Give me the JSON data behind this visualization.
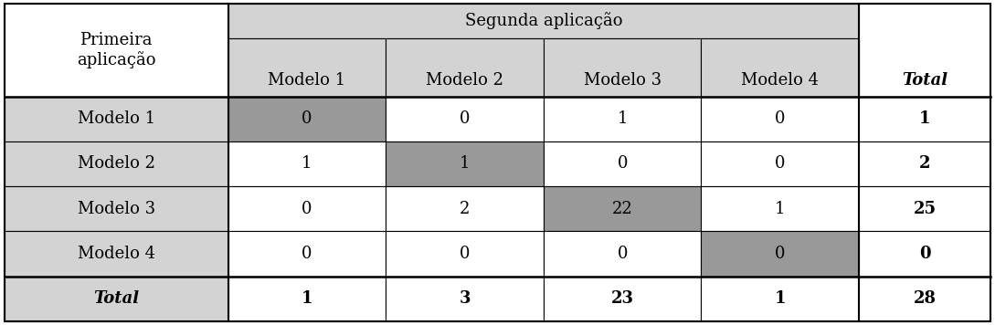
{
  "segunda_aplicacao_label": "Segunda aplicação",
  "col_headers": [
    "Modelo 1",
    "Modelo 2",
    "Modelo 3",
    "Modelo 4",
    "Total"
  ],
  "row_header_label": "Primeira\naplicação",
  "row_labels": [
    "Modelo 1",
    "Modelo 2",
    "Modelo 3",
    "Modelo 4"
  ],
  "total_label": "Total",
  "data": [
    [
      0,
      0,
      1,
      0,
      1
    ],
    [
      1,
      1,
      0,
      0,
      2
    ],
    [
      0,
      2,
      22,
      1,
      25
    ],
    [
      0,
      0,
      0,
      0,
      0
    ],
    [
      1,
      3,
      23,
      1,
      28
    ]
  ],
  "light_gray": "#d3d3d3",
  "medium_gray": "#999999",
  "white": "#ffffff",
  "font_size": 13,
  "fig_width": 10.89,
  "fig_height": 3.56,
  "dpi": 100
}
